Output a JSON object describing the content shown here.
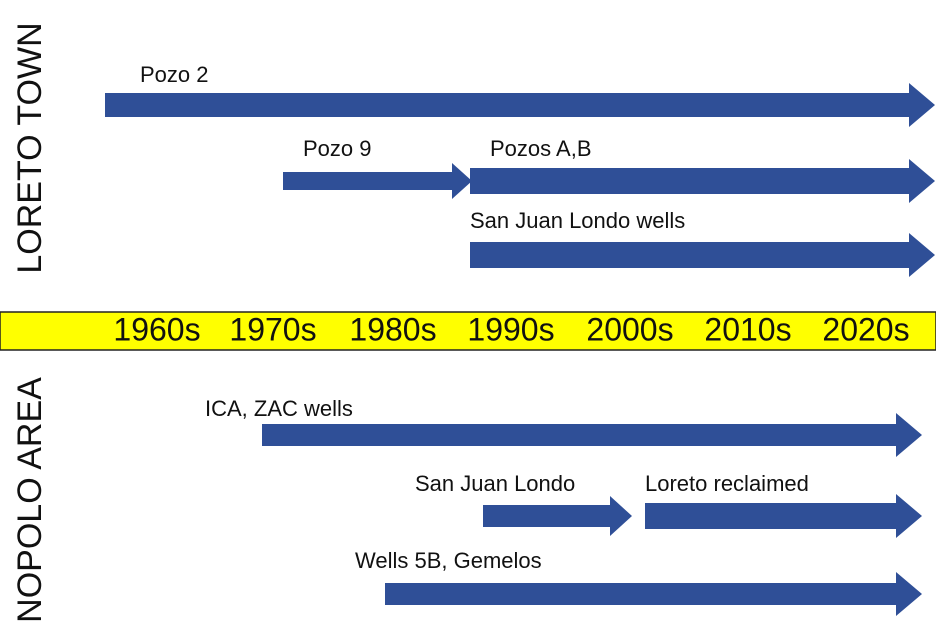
{
  "sections": [
    {
      "title": "LORETO TOWN",
      "arrows": [
        {
          "label": "Pozo 2"
        },
        {
          "label": "Pozo 9"
        },
        {
          "label": "Pozos A,B"
        },
        {
          "label": "San Juan Londo wells"
        }
      ]
    },
    {
      "title": "NOPOLO AREA",
      "arrows": [
        {
          "label": "ICA, ZAC wells"
        },
        {
          "label": "San Juan Londo"
        },
        {
          "label": "Loreto reclaimed"
        },
        {
          "label": "Wells 5B, Gemelos"
        }
      ]
    }
  ],
  "timeline": [
    "1960s",
    "1970s",
    "1980s",
    "1990s",
    "2000s",
    "2010s",
    "2020s"
  ]
}
